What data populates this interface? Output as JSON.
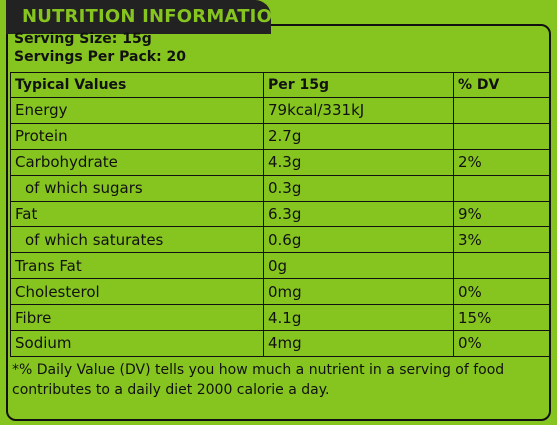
{
  "header": {
    "title": "NUTRITION INFORMATION"
  },
  "serving": {
    "size": "Serving Size: 15g",
    "per_pack": "Servings Per Pack: 20"
  },
  "table": {
    "headers": [
      "Typical Values",
      "Per 15g",
      "% DV"
    ],
    "rows": [
      {
        "name": "Energy",
        "per": "79kcal/331kJ",
        "dv": ""
      },
      {
        "name": "Protein",
        "per": "2.7g",
        "dv": ""
      },
      {
        "name": "Carbohydrate",
        "per": "4.3g",
        "dv": "2%"
      },
      {
        "name": "of which sugars",
        "per": "0.3g",
        "dv": ""
      },
      {
        "name": "Fat",
        "per": "6.3g",
        "dv": "9%"
      },
      {
        "name": "of which saturates",
        "per": "0.6g",
        "dv": "3%"
      },
      {
        "name": "Trans Fat",
        "per": "0g",
        "dv": ""
      },
      {
        "name": "Cholesterol",
        "per": "0mg",
        "dv": "0%"
      },
      {
        "name": "Fibre",
        "per": "4.1g",
        "dv": "15%"
      },
      {
        "name": "Sodium",
        "per": "4mg",
        "dv": "0%"
      }
    ]
  },
  "footnote": "*% Daily Value (DV) tells you how much a nutrient in a serving of food contributes to a daily diet 2000 calorie a day.",
  "colors": {
    "background": "#86c51f",
    "header": "#222222",
    "text": "#111111"
  }
}
